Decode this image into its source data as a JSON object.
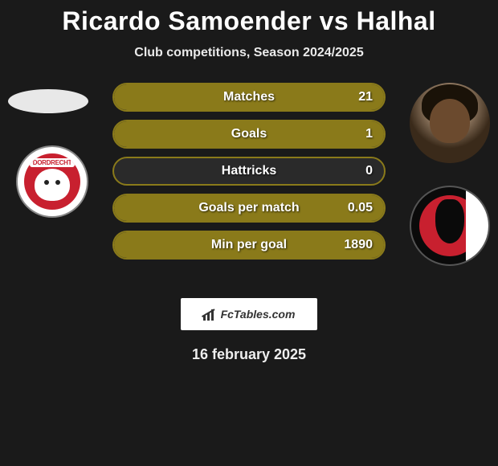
{
  "title": "Ricardo Samoender vs Halhal",
  "subtitle": "Club competitions, Season 2024/2025",
  "date": "16 february 2025",
  "brand": "FcTables.com",
  "colors": {
    "background": "#1a1a1a",
    "bar_border": "#8a7a1a",
    "bar_fill": "#8a7a1a",
    "bar_bg": "#2a2a2a",
    "text": "#ffffff",
    "club_left_accent": "#c8202f",
    "club_right_accent": "#c8202f"
  },
  "left": {
    "club_text": "DORDRECHT"
  },
  "stats": [
    {
      "label": "Matches",
      "value": "21",
      "fill_pct": 100
    },
    {
      "label": "Goals",
      "value": "1",
      "fill_pct": 100
    },
    {
      "label": "Hattricks",
      "value": "0",
      "fill_pct": 0
    },
    {
      "label": "Goals per match",
      "value": "0.05",
      "fill_pct": 100
    },
    {
      "label": "Min per goal",
      "value": "1890",
      "fill_pct": 100
    }
  ],
  "typography": {
    "title_fontsize": 32,
    "subtitle_fontsize": 16,
    "stat_label_fontsize": 16,
    "date_fontsize": 18
  }
}
